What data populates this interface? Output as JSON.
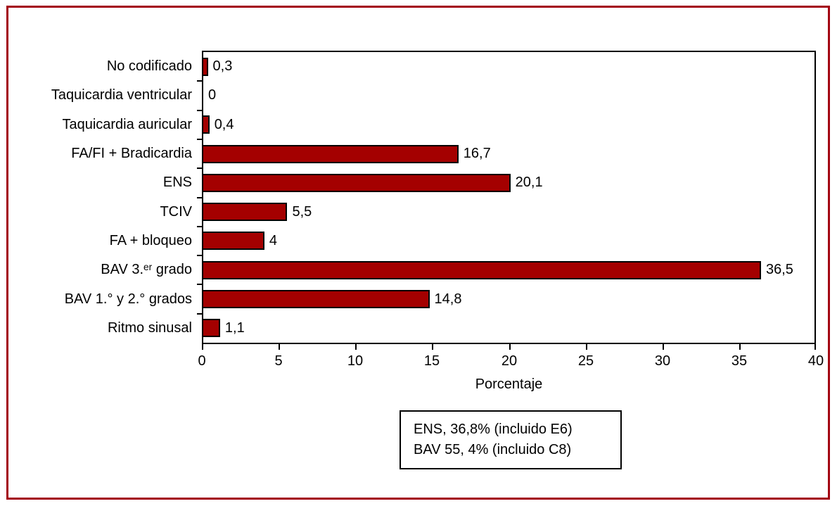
{
  "figure": {
    "frame_color": "#a30012",
    "background_color": "#ffffff"
  },
  "chart_data": {
    "type": "bar",
    "orientation": "horizontal",
    "title": "",
    "xlabel": "Porcentaje",
    "ylabel": "",
    "xlim": [
      0,
      40
    ],
    "xticks": [
      0,
      5,
      10,
      15,
      20,
      25,
      30,
      35,
      40
    ],
    "xtick_labels": [
      "0",
      "5",
      "10",
      "15",
      "20",
      "25",
      "30",
      "35",
      "40"
    ],
    "grid": false,
    "legend": false,
    "bar_color": "#a40000",
    "bar_border_color": "#000000",
    "categories": [
      "No codificado",
      "Taquicardia ventricular",
      "Taquicardia auricular",
      "FA/FI + Bradicardia",
      "ENS",
      "TCIV",
      "FA + bloqueo",
      "BAV 3.ᵉʳ grado",
      "BAV 1.° y 2.° grados",
      "Ritmo sinusal"
    ],
    "values": [
      0.3,
      0,
      0.4,
      16.7,
      20.1,
      5.5,
      4,
      36.5,
      14.8,
      1.1
    ],
    "value_labels": [
      "0,3",
      "0",
      "0,4",
      "16,7",
      "20,1",
      "5,5",
      "4",
      "36,5",
      "14,8",
      "1,1"
    ]
  },
  "annotation_box": {
    "line1": "ENS, 36,8% (incluido E6)",
    "line2": "BAV 55, 4% (incluido C8)"
  }
}
